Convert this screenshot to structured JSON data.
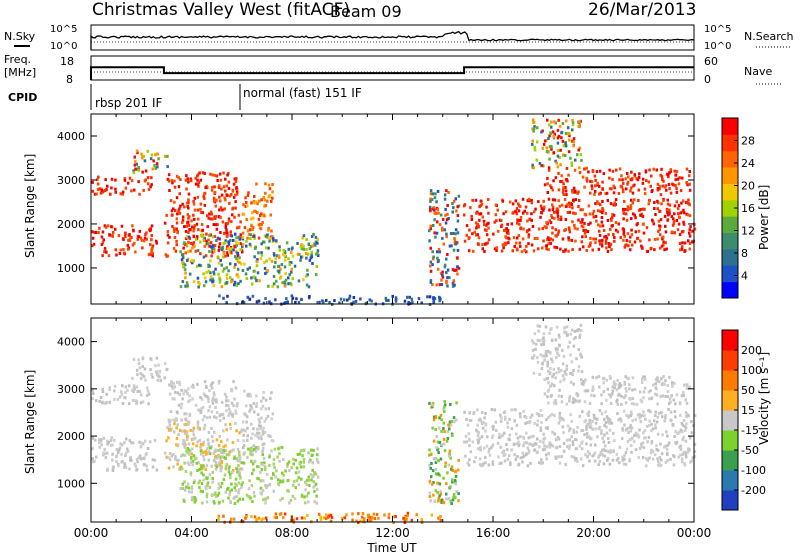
{
  "header": {
    "station": "Christmas Valley West (fitACF)",
    "beam": "Beam 09",
    "date": "26/Mar/2013"
  },
  "strips": {
    "nsky_label": "N.Sky",
    "nsky_left_ticks": [
      "10^5",
      "10^0"
    ],
    "nsky_right_ticks": [
      "10^5",
      "10^0"
    ],
    "nsearch_label": "N.Search",
    "freq_label_1": "Freq.",
    "freq_label_2": "[MHz]",
    "freq_ticks": [
      "18",
      "8"
    ],
    "nave_ticks": [
      "60",
      "0"
    ],
    "nave_label": "Nave",
    "cpid_label": "CPID",
    "cpid_modes": [
      {
        "label": "rbsp 201 IF",
        "start_hour": 0
      },
      {
        "label": "normal (fast) 151 IF",
        "start_hour": 6
      }
    ]
  },
  "colorbars": {
    "power": {
      "label": "Power [dB]",
      "ticks": [
        "28",
        "24",
        "20",
        "16",
        "12",
        "8",
        "4"
      ],
      "colors": [
        "#0000ff",
        "#1e50c8",
        "#2f6f8f",
        "#3c8c6e",
        "#5aaa3c",
        "#a0d200",
        "#f0c800",
        "#ff9600",
        "#ff6400",
        "#ff3200",
        "#ff0000"
      ]
    },
    "velocity": {
      "label": "Velocity [m s⁻¹]",
      "ticks": [
        "200",
        "100",
        "50",
        "15",
        "-15",
        "-50",
        "-100",
        "-200"
      ],
      "colors": [
        "#2040c0",
        "#2a7ab0",
        "#3aa050",
        "#7ed030",
        "#c8c8c8",
        "#ffb020",
        "#ff7a00",
        "#ff3c00",
        "#ff0000"
      ]
    }
  },
  "chart_data": {
    "type": "heatmap",
    "x_ticks": [
      "00:00",
      "04:00",
      "08:00",
      "12:00",
      "16:00",
      "20:00",
      "00:00"
    ],
    "x_range_hours": [
      0,
      24
    ],
    "xlabel": "Time UT",
    "ylabel": "Slant Range [km]",
    "y_ticks": [
      1000,
      2000,
      3000,
      4000
    ],
    "y_range_km": [
      180,
      4500
    ],
    "freq_series_mhz": [
      {
        "start_hour": 0,
        "end_hour": 2.9,
        "value": 14.5
      },
      {
        "start_hour": 2.9,
        "end_hour": 14.85,
        "value": 10.6
      },
      {
        "start_hour": 14.85,
        "end_hour": 24,
        "value": 14.5
      }
    ],
    "echo_regions": [
      {
        "t0": 0.0,
        "t1": 2.6,
        "r0": 1300,
        "r1": 2000,
        "power": "red",
        "velocity": "gray"
      },
      {
        "t0": 0.0,
        "t1": 2.4,
        "r0": 2700,
        "r1": 3100,
        "power": "red",
        "velocity": "gray"
      },
      {
        "t0": 1.6,
        "t1": 3.0,
        "r0": 3200,
        "r1": 3700,
        "power": "mixed",
        "velocity": "gray"
      },
      {
        "t0": 2.9,
        "t1": 6.0,
        "r0": 1300,
        "r1": 2300,
        "power": "red",
        "velocity": "gray-orange"
      },
      {
        "t0": 3.0,
        "t1": 5.8,
        "r0": 2300,
        "r1": 3200,
        "power": "red",
        "velocity": "gray"
      },
      {
        "t0": 6.0,
        "t1": 7.2,
        "r0": 1700,
        "r1": 3000,
        "power": "orange",
        "velocity": "gray"
      },
      {
        "t0": 3.5,
        "t1": 9.0,
        "r0": 600,
        "r1": 1800,
        "power": "blue-green",
        "velocity": "green-gray"
      },
      {
        "t0": 5.0,
        "t1": 14.0,
        "r0": 200,
        "r1": 400,
        "power": "blue",
        "velocity": "orange"
      },
      {
        "t0": 13.4,
        "t1": 14.6,
        "r0": 600,
        "r1": 2800,
        "power": "red-blue",
        "velocity": "green"
      },
      {
        "t0": 14.8,
        "t1": 24.0,
        "r0": 1400,
        "r1": 2600,
        "power": "red",
        "velocity": "gray"
      },
      {
        "t0": 18.0,
        "t1": 23.8,
        "r0": 2700,
        "r1": 3300,
        "power": "red",
        "velocity": "gray"
      },
      {
        "t0": 17.5,
        "t1": 19.5,
        "r0": 3300,
        "r1": 4400,
        "power": "mixed",
        "velocity": "gray"
      }
    ]
  }
}
